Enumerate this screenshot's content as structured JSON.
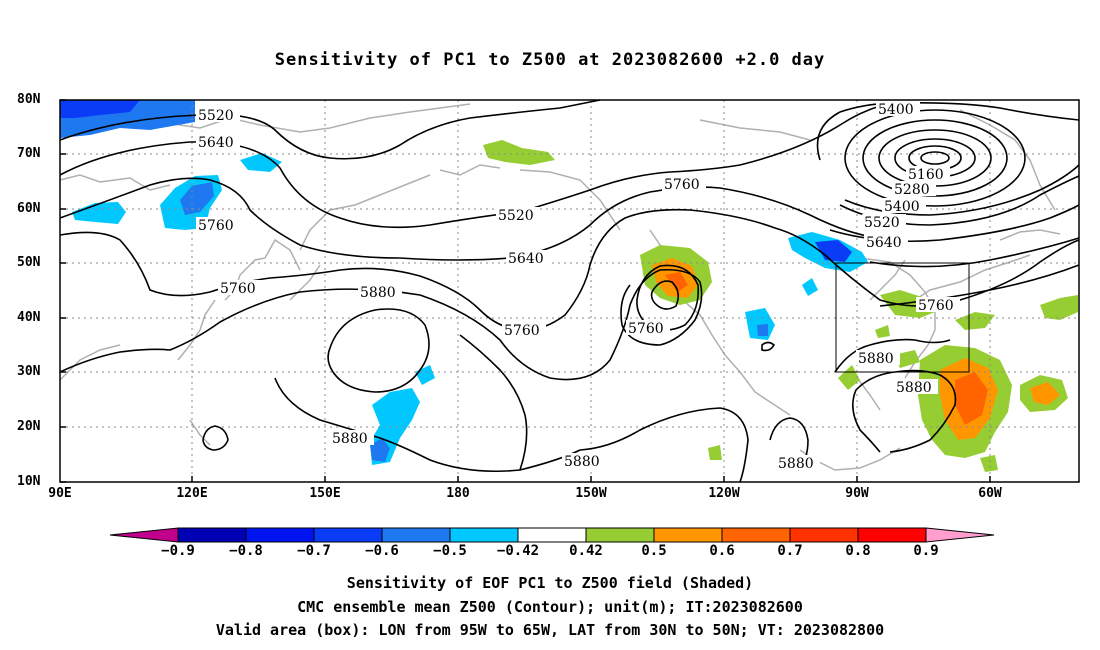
{
  "title": "Sensitivity of PC1 to Z500 at 2023082600 +2.0 day",
  "lat_labels": [
    "80N",
    "70N",
    "60N",
    "50N",
    "40N",
    "30N",
    "20N",
    "10N"
  ],
  "lon_labels": [
    "90E",
    "120E",
    "150E",
    "180",
    "150W",
    "120W",
    "90W",
    "60W"
  ],
  "contour_labels": {
    "c5520a": "5520",
    "c5640a": "5640",
    "c5760a": "5760",
    "c5760b": "5760",
    "c5880a": "5880",
    "c5520b": "5520",
    "c5640b": "5640",
    "c5760c": "5760",
    "c5760d": "5760",
    "c5760e": "5760",
    "c5400a": "5400",
    "c5160": "5160",
    "c5280": "5280",
    "c5400b": "5400",
    "c5520c": "5520",
    "c5640c": "5640",
    "c5760f": "5760",
    "c5880b": "5880",
    "c5880c": "5880",
    "c5880d": "5880",
    "c5880e": "5880",
    "c5880f": "5880"
  },
  "colorbar": {
    "labels": [
      "−0.9",
      "−0.8",
      "−0.7",
      "−0.6",
      "−0.5",
      "−0.42",
      "0.42",
      "0.5",
      "0.6",
      "0.7",
      "0.8",
      "0.9"
    ],
    "colors": {
      "below": "#c0008c",
      "bins": [
        "#0000b4",
        "#0014f0",
        "#0a3cf5",
        "#1e78f0",
        "#00c8ff",
        "#ffffff",
        "#96cd32",
        "#ff9600",
        "#ff6400",
        "#ff3200",
        "#ff0000"
      ],
      "above": "#ff9ecf"
    }
  },
  "captions": {
    "line1": "Sensitivity of EOF PC1 to Z500 field (Shaded)",
    "line2": "CMC ensemble mean Z500 (Contour); unit(m); IT:2023082600",
    "line3": "Valid area (box): LON from 95W to 65W, LAT from 30N to 50N; VT: 2023082800"
  }
}
